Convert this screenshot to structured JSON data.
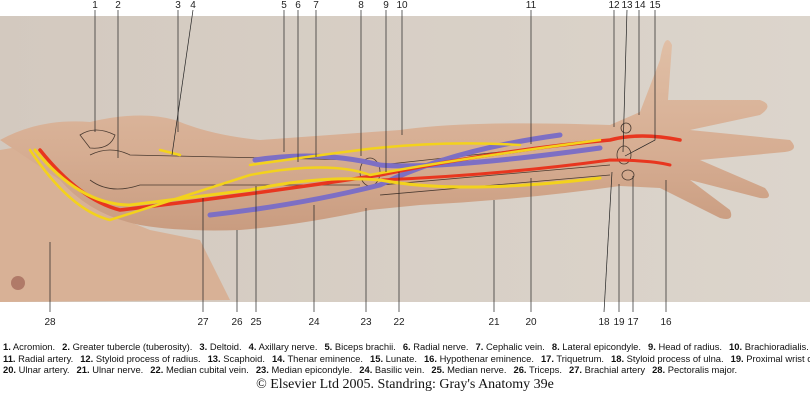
{
  "labels_top": [
    "1",
    "2",
    "3",
    "4",
    "5",
    "6",
    "7",
    "8",
    "9",
    "10",
    "11",
    "12",
    "13",
    "14",
    "15"
  ],
  "labels_bottom": [
    "28",
    "27",
    "26",
    "25",
    "24",
    "23",
    "22",
    "21",
    "20",
    "18",
    "19",
    "17",
    "16"
  ],
  "legend": [
    [
      {
        "n": "1.",
        "t": "Acromion."
      },
      {
        "n": "2.",
        "t": "Greater tubercle (tuberosity)."
      },
      {
        "n": "3.",
        "t": "Deltoid."
      },
      {
        "n": "4.",
        "t": "Axillary nerve."
      },
      {
        "n": "5.",
        "t": "Biceps brachii."
      },
      {
        "n": "6.",
        "t": "Radial nerve."
      },
      {
        "n": "7.",
        "t": "Cephalic vein."
      },
      {
        "n": "8.",
        "t": "Lateral epicondyle."
      },
      {
        "n": "9.",
        "t": "Head of radius."
      },
      {
        "n": "10.",
        "t": "Brachioradialis."
      }
    ],
    [
      {
        "n": "11.",
        "t": "Radial artery."
      },
      {
        "n": "12.",
        "t": "Styloid process of radius."
      },
      {
        "n": "13.",
        "t": "Scaphoid."
      },
      {
        "n": "14.",
        "t": "Thenar eminence."
      },
      {
        "n": "15.",
        "t": "Lunate."
      },
      {
        "n": "16.",
        "t": "Hypothenar eminence."
      },
      {
        "n": "17.",
        "t": "Triquetrum."
      },
      {
        "n": "18.",
        "t": "Styloid process of ulna."
      },
      {
        "n": "19.",
        "t": "Proximal wrist crease."
      }
    ],
    [
      {
        "n": "20.",
        "t": "Ulnar artery."
      },
      {
        "n": "21.",
        "t": "Ulnar nerve."
      },
      {
        "n": "22.",
        "t": "Median cubital vein."
      },
      {
        "n": "23.",
        "t": "Median epicondyle."
      },
      {
        "n": "24.",
        "t": "Basilic vein."
      },
      {
        "n": "25.",
        "t": "Median nerve."
      },
      {
        "n": "26.",
        "t": "Triceps."
      },
      {
        "n": "27.",
        "t": "Brachial artery"
      },
      {
        "n": "28.",
        "t": "Pectoralis major."
      }
    ]
  ],
  "copyright": "© Elsevier Ltd 2005. Standring: Gray's Anatomy 39e",
  "colors": {
    "artery": "#e8361f",
    "nerve": "#f3d21c",
    "vein": "#7d6fc4",
    "skin": "#d9b49a",
    "background": "#d6cdc4"
  }
}
